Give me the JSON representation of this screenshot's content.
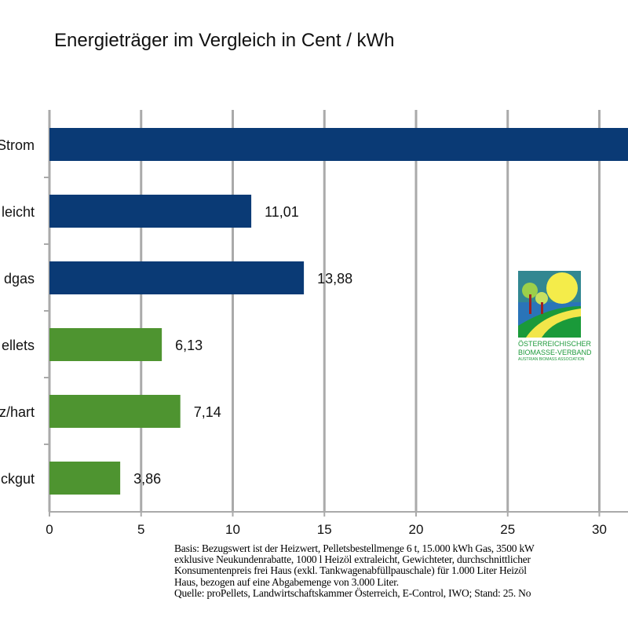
{
  "chart_data": {
    "type": "bar",
    "orientation": "horizontal",
    "title": "Energieträger im Vergleich in Cent / kWh",
    "categories": [
      "Strom",
      "leicht",
      "dgas",
      "ellets",
      "z/hart",
      "ckgut"
    ],
    "values": [
      33,
      11.01,
      13.88,
      6.13,
      7.14,
      3.86
    ],
    "value_labels": [
      "",
      "11,01",
      "13,88",
      "6,13",
      "7,14",
      "3,86"
    ],
    "colors": [
      "#0a3a75",
      "#0a3a75",
      "#0a3a75",
      "#4e9430",
      "#4e9430",
      "#4e9430"
    ],
    "xticks": [
      0,
      5,
      10,
      15,
      20,
      25,
      30
    ],
    "xlim": [
      0,
      31.6
    ],
    "grid": "vertical",
    "xlabel": "",
    "ylabel": ""
  },
  "logo": {
    "line1": "Österreichischer",
    "line2": "Biomasse-Verband",
    "line3": "Austrian Biomass Association"
  },
  "footnote": [
    "Basis: Bezugswert ist der Heizwert, Pelletsbestellmenge 6 t, 15.000 kWh Gas, 3500 kW",
    "exklusive Neukundenrabatte, 1000 l Heizöl extraleicht, Gewichteter, durchschnittlicher",
    "Konsumentenpreis frei Haus (exkl. Tankwagenabfüllpauschale) für 1.000 Liter Heizöl",
    "Haus, bezogen auf eine Abgabemenge von 3.000 Liter.",
    "Quelle: proPellets, Landwirtschaftskammer Österreich, E-Control, IWO; Stand: 25. No"
  ]
}
